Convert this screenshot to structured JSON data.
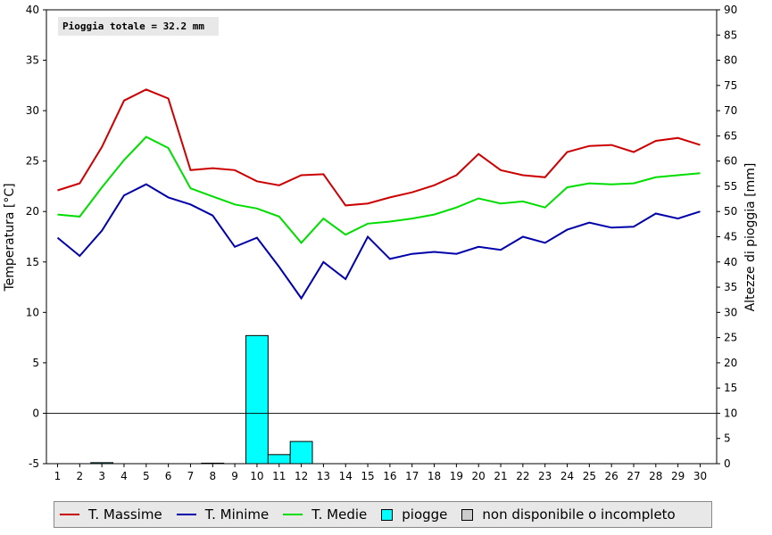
{
  "chart_data": {
    "type": "line",
    "annotation": "Pioggia totale = 32.2 mm",
    "ylabel_left": "Temperatura [°C]",
    "ylabel_right": "Altezze di pioggia [mm]",
    "ylim_left": [
      -5,
      40
    ],
    "ylim_right": [
      0,
      90
    ],
    "yticks_left": [
      -5,
      0,
      5,
      10,
      15,
      20,
      25,
      30,
      35,
      40
    ],
    "yticks_right": [
      0,
      5,
      10,
      15,
      20,
      25,
      30,
      35,
      40,
      45,
      50,
      55,
      60,
      65,
      70,
      75,
      80,
      85,
      90
    ],
    "x": [
      1,
      2,
      3,
      4,
      5,
      6,
      7,
      8,
      9,
      10,
      11,
      12,
      13,
      14,
      15,
      16,
      17,
      18,
      19,
      20,
      21,
      22,
      23,
      24,
      25,
      26,
      27,
      28,
      29,
      30
    ],
    "series": [
      {
        "name": "T. Massime",
        "color": "#cc0000",
        "values": [
          22.1,
          22.8,
          26.4,
          31.0,
          32.1,
          31.2,
          24.1,
          24.3,
          24.1,
          23.0,
          22.6,
          23.6,
          23.7,
          20.6,
          20.8,
          21.4,
          21.9,
          22.6,
          23.6,
          25.7,
          24.1,
          23.6,
          23.4,
          25.9,
          26.5,
          26.6,
          25.9,
          27.0,
          27.3,
          26.6
        ]
      },
      {
        "name": "T. Minime",
        "color": "#0000aa",
        "values": [
          17.4,
          15.6,
          18.1,
          21.6,
          22.7,
          21.4,
          20.7,
          19.6,
          16.5,
          17.4,
          14.5,
          11.4,
          15.0,
          13.3,
          17.5,
          15.3,
          15.8,
          16.0,
          15.8,
          16.5,
          16.2,
          17.5,
          16.9,
          18.2,
          18.9,
          18.4,
          18.5,
          19.8,
          19.3,
          20.0
        ]
      },
      {
        "name": "T. Medie",
        "color": "#00dd00",
        "values": [
          19.7,
          19.5,
          22.4,
          25.1,
          27.4,
          26.3,
          22.3,
          21.5,
          20.7,
          20.3,
          19.5,
          16.9,
          19.3,
          17.7,
          18.8,
          19.0,
          19.3,
          19.7,
          20.4,
          21.3,
          20.8,
          21.0,
          20.4,
          22.4,
          22.8,
          22.7,
          22.8,
          23.4,
          23.6,
          23.8
        ]
      }
    ],
    "rain": {
      "name": "piogge",
      "color": "#00ffff",
      "values": [
        0,
        0,
        0.2,
        0,
        0,
        0,
        0,
        0.1,
        0,
        25.4,
        1.8,
        4.4,
        0,
        0,
        0,
        0,
        0,
        0,
        0,
        0,
        0,
        0,
        0,
        0,
        0,
        0,
        0,
        0,
        0,
        0
      ]
    },
    "legend": [
      "T. Massime",
      "T. Minime",
      "T. Medie",
      "piogge",
      "non disponibile o incompleto"
    ],
    "legend_position": "bottom",
    "grid": false
  }
}
